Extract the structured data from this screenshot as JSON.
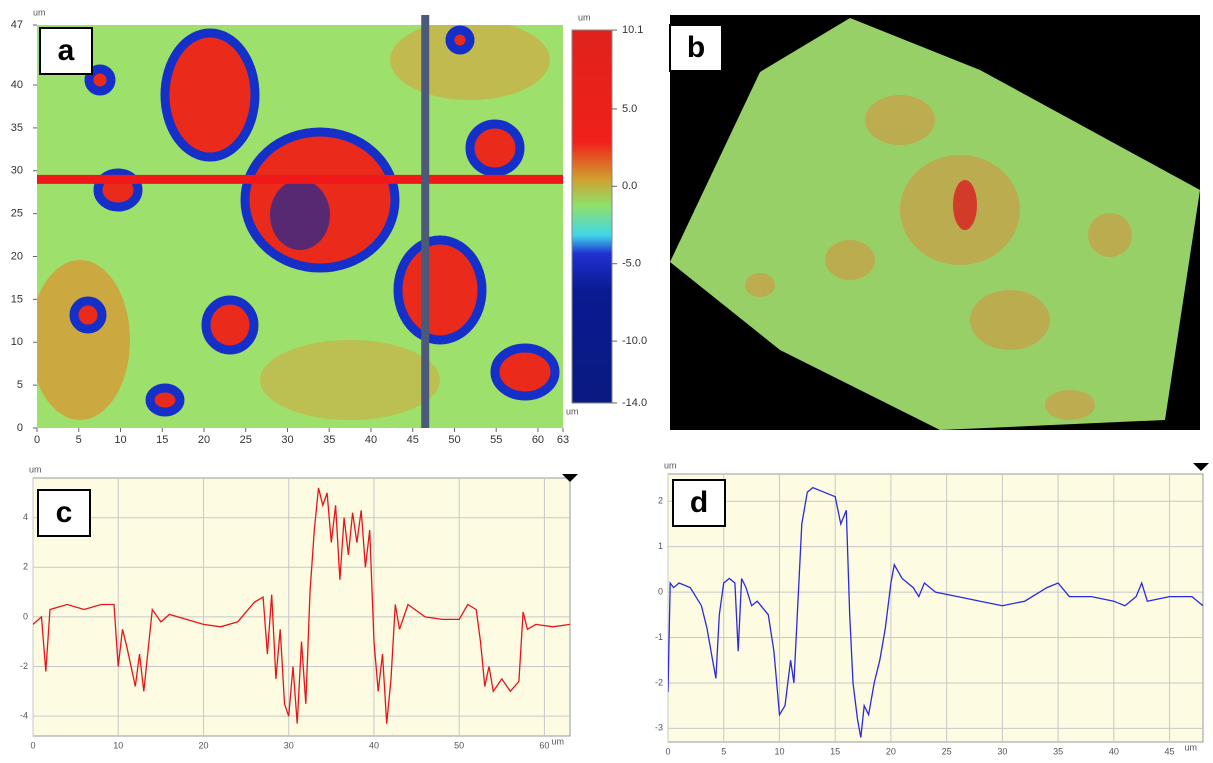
{
  "chart_data": [
    {
      "type": "heatmap",
      "label": "a",
      "unit": "um",
      "xlim": [
        0,
        63
      ],
      "xticks": [
        0,
        5,
        10,
        15,
        20,
        25,
        30,
        35,
        40,
        45,
        50,
        55,
        60,
        63
      ],
      "ylim": [
        0,
        47
      ],
      "yticks": [
        0,
        5,
        10,
        15,
        20,
        25,
        30,
        35,
        40,
        47
      ],
      "profile_y": 29,
      "profile_x": 46.5,
      "clim": [
        -14,
        10.1
      ],
      "cticks": [
        {
          "value": 10.1,
          "label": "10.1"
        },
        {
          "value": 5,
          "label": "5.0"
        },
        {
          "value": 0,
          "label": "0.0"
        },
        {
          "value": -5,
          "label": "-5.0"
        },
        {
          "value": -10,
          "label": "-10.0"
        },
        {
          "value": -14,
          "label": "-14.0"
        }
      ]
    },
    {
      "type": "surface",
      "label": "b"
    },
    {
      "type": "line",
      "label": "c",
      "x_unit": "um",
      "y_unit": "um",
      "color": "#e8141a",
      "grid": true,
      "xlim": [
        0,
        63
      ],
      "xticks": [
        0,
        10,
        20,
        30,
        40,
        50,
        60
      ],
      "ylim": [
        -4.8,
        5.6
      ],
      "yticks": [
        -4,
        -2,
        0,
        2,
        4
      ],
      "x": [
        0,
        1,
        1.5,
        2,
        4,
        6,
        8,
        9.5,
        10,
        10.5,
        11,
        12,
        12.5,
        13,
        14,
        15,
        16,
        18,
        20,
        22,
        24,
        26,
        27,
        27.5,
        28,
        28.5,
        29,
        29.5,
        30,
        30.5,
        31,
        31.5,
        32,
        32.5,
        33,
        33.5,
        34,
        34.5,
        35,
        35.5,
        36,
        36.5,
        37,
        37.5,
        38,
        38.5,
        39,
        39.5,
        40,
        40.5,
        41,
        41.5,
        42,
        42.5,
        43,
        44,
        46,
        48,
        50,
        51,
        52,
        52.5,
        53,
        53.5,
        54,
        55,
        56,
        57,
        57.5,
        58,
        59,
        61,
        63
      ],
      "values": [
        -0.3,
        0,
        -2.2,
        0.3,
        0.5,
        0.3,
        0.5,
        0.5,
        -2.0,
        -0.5,
        -1.2,
        -2.8,
        -1.5,
        -3.0,
        0.3,
        -0.2,
        0.1,
        -0.1,
        -0.3,
        -0.4,
        -0.2,
        0.6,
        0.8,
        -1.5,
        0.9,
        -2.5,
        -0.5,
        -3.5,
        -4.0,
        -2.0,
        -4.3,
        -1.0,
        -3.5,
        1.0,
        3.5,
        5.2,
        4.5,
        5.0,
        3.0,
        4.5,
        1.5,
        4.0,
        2.5,
        4.2,
        3.0,
        4.3,
        2.0,
        3.5,
        -1.0,
        -3.0,
        -1.5,
        -4.3,
        -2.5,
        0.5,
        -0.5,
        0.5,
        0,
        -0.1,
        -0.1,
        0.5,
        0.3,
        -1.0,
        -2.8,
        -2.0,
        -3.0,
        -2.5,
        -3.0,
        -2.6,
        0.2,
        -0.5,
        -0.3,
        -0.4,
        -0.3
      ]
    },
    {
      "type": "line",
      "label": "d",
      "x_unit": "um",
      "y_unit": "um",
      "color": "#2a2ae0",
      "grid": true,
      "xlim": [
        0,
        48
      ],
      "xticks": [
        0,
        5,
        10,
        15,
        20,
        25,
        30,
        35,
        40,
        45
      ],
      "ylim": [
        -3.3,
        2.6
      ],
      "yticks": [
        -3,
        -2,
        -1,
        0,
        1,
        2
      ],
      "x": [
        0,
        0.2,
        0.5,
        1,
        2,
        3,
        3.5,
        4,
        4.3,
        4.6,
        5,
        5.5,
        6,
        6.3,
        6.6,
        7,
        7.5,
        8,
        9,
        9.5,
        10,
        10.5,
        11,
        11.3,
        11.6,
        12,
        12.5,
        13,
        14,
        15,
        15.5,
        16,
        16.3,
        16.6,
        17,
        17.3,
        17.6,
        18,
        18.5,
        19,
        19.5,
        20,
        20.3,
        21,
        22,
        22.5,
        23,
        24,
        26,
        28,
        30,
        32,
        34,
        35,
        36,
        38,
        40,
        41,
        42,
        42.5,
        43,
        45,
        47,
        48
      ],
      "values": [
        -2.2,
        0.2,
        0.1,
        0.2,
        0.1,
        -0.3,
        -0.8,
        -1.5,
        -1.9,
        -0.5,
        0.2,
        0.3,
        0.2,
        -1.3,
        0.3,
        0.1,
        -0.3,
        -0.2,
        -0.5,
        -1.3,
        -2.7,
        -2.5,
        -1.5,
        -2.0,
        -0.5,
        1.5,
        2.2,
        2.3,
        2.2,
        2.1,
        1.5,
        1.8,
        -0.5,
        -2.0,
        -2.8,
        -3.2,
        -2.5,
        -2.7,
        -2.0,
        -1.5,
        -0.8,
        0.2,
        0.6,
        0.3,
        0.1,
        -0.1,
        0.2,
        0.0,
        -0.1,
        -0.2,
        -0.3,
        -0.2,
        0.1,
        0.2,
        -0.1,
        -0.1,
        -0.2,
        -0.3,
        -0.1,
        0.2,
        -0.2,
        -0.1,
        -0.1,
        -0.3
      ]
    }
  ]
}
